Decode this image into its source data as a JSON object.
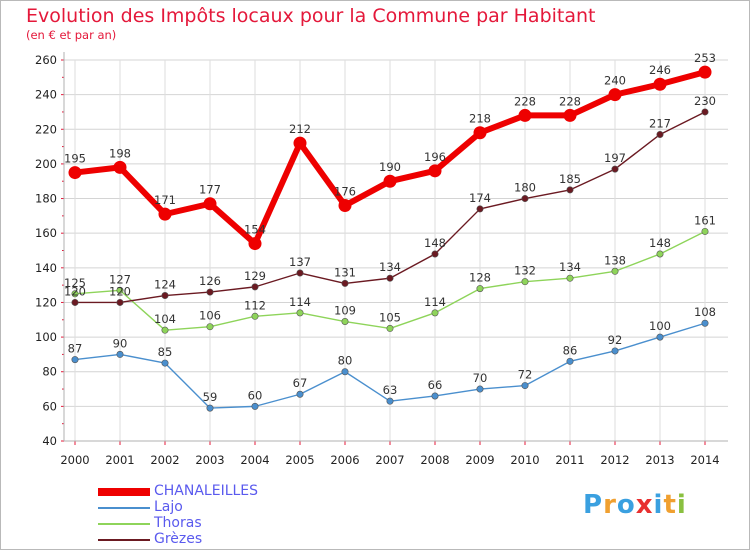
{
  "title": "Evolution des Impôts locaux pour la Commune par Habitant",
  "subtitle": "(en € et par an)",
  "brand": {
    "text": "Proxiti",
    "letters": [
      "P",
      "r",
      "o",
      "x",
      "i",
      "t",
      "i"
    ],
    "colors": [
      "#3aa0e0",
      "#f0a030",
      "#3aa0e0",
      "#e83030",
      "#3aa0e0",
      "#f0a030",
      "#8ac040"
    ]
  },
  "chart_data": {
    "type": "line",
    "categories": [
      "2000",
      "2001",
      "2002",
      "2003",
      "2004",
      "2005",
      "2006",
      "2007",
      "2008",
      "2009",
      "2010",
      "2011",
      "2012",
      "2013",
      "2014"
    ],
    "ylim": [
      40,
      260
    ],
    "yticks": [
      40,
      60,
      80,
      100,
      120,
      140,
      160,
      180,
      200,
      220,
      240,
      260
    ],
    "grid": true,
    "legend_position": "bottom-left",
    "series": [
      {
        "name": "CHANALEILLES",
        "color": "#ee0000",
        "label_color": "#5a5aee",
        "width": "thick",
        "values": [
          195,
          198,
          171,
          177,
          154,
          212,
          176,
          190,
          196,
          218,
          228,
          228,
          240,
          246,
          253
        ],
        "labels": [
          "195",
          "198",
          "171",
          "177",
          "154",
          "212",
          "176",
          "190",
          "196",
          "218",
          "228",
          "228",
          "240",
          "246",
          "253"
        ]
      },
      {
        "name": "Lajo",
        "color": "#4a8fce",
        "label_color": "#5a5aee",
        "width": "thin",
        "values": [
          87,
          90,
          85,
          59,
          60,
          67,
          80,
          63,
          66,
          70,
          72,
          86,
          92,
          100,
          108
        ],
        "labels": [
          "87",
          "90",
          "85",
          "59",
          "60",
          "67",
          "80",
          "63",
          "66",
          "70",
          "72",
          "86",
          "92",
          "100",
          "108"
        ]
      },
      {
        "name": "Thoras",
        "color": "#8ed45a",
        "label_color": "#5a5aee",
        "width": "thin",
        "values": [
          125,
          127,
          104,
          106,
          112,
          114,
          109,
          105,
          114,
          128,
          132,
          134,
          138,
          148,
          161
        ],
        "labels": [
          "125",
          "127",
          "104",
          "106",
          "112",
          "114",
          "109",
          "105",
          "114",
          "128",
          "132",
          "134",
          "138",
          "148",
          "161"
        ]
      },
      {
        "name": "Grèzes",
        "color": "#6b1a22",
        "label_color": "#5a5aee",
        "width": "thin",
        "values": [
          120,
          120,
          124,
          126,
          129,
          137,
          131,
          134,
          148,
          174,
          180,
          185,
          197,
          217,
          230
        ],
        "labels": [
          "120",
          "120",
          "124",
          "126",
          "129",
          "137",
          "131",
          "134",
          "148",
          "174",
          "180",
          "185",
          "197",
          "217",
          "230"
        ]
      }
    ]
  }
}
